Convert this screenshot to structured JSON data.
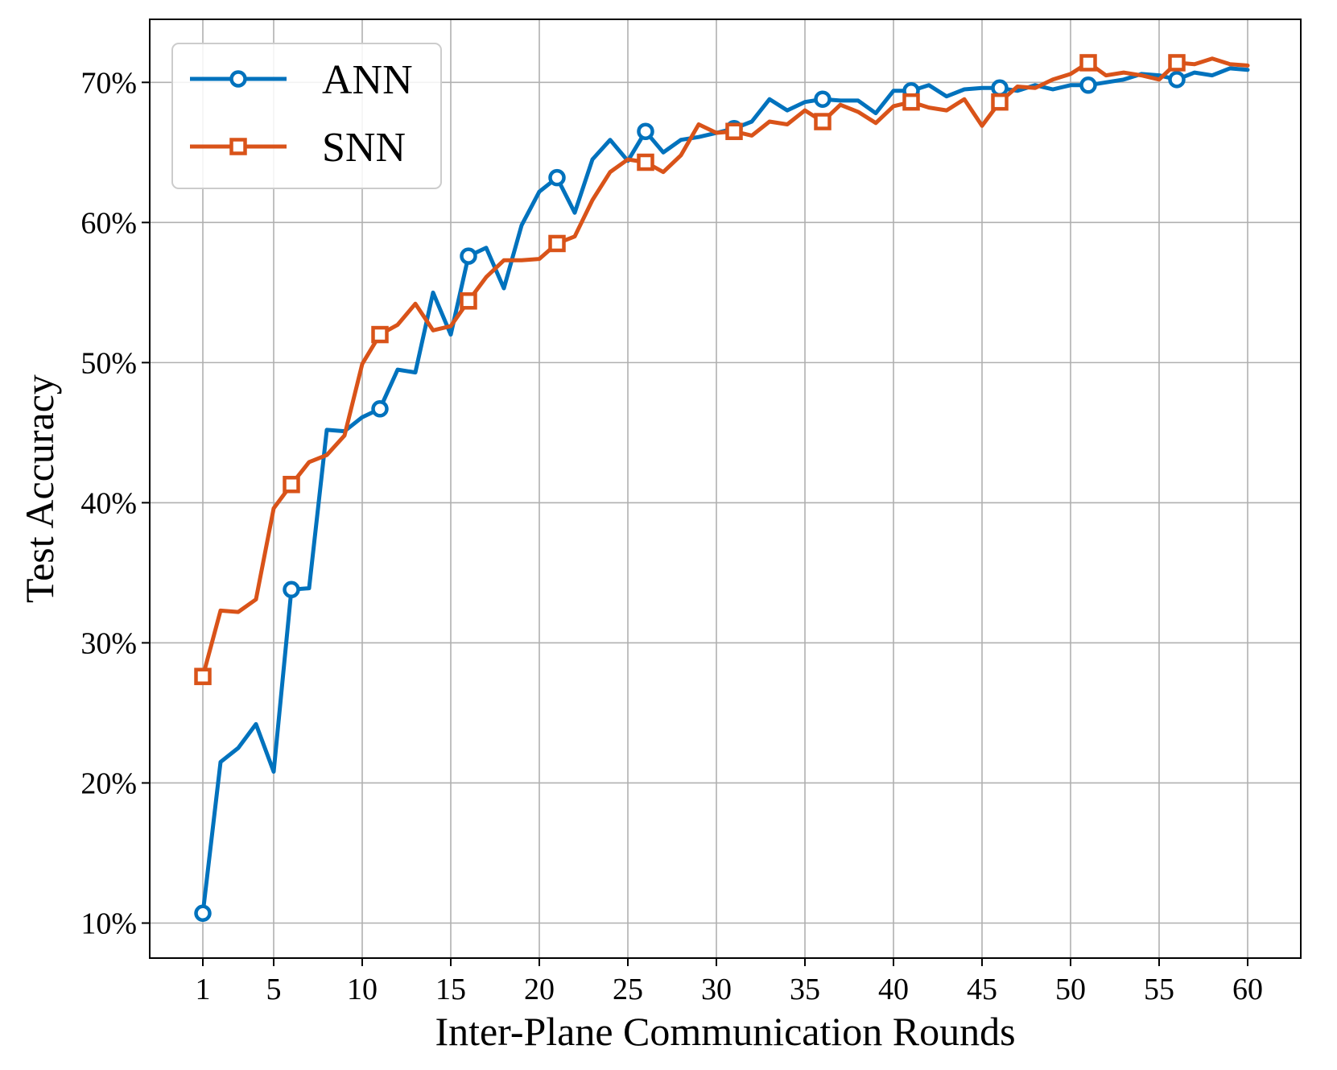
{
  "chart_data": {
    "type": "line",
    "xlabel": "Inter-Plane Communication Rounds",
    "ylabel": "Test Accuracy",
    "xlim": [
      -2,
      63
    ],
    "ylim": [
      7.5,
      74.5
    ],
    "x_ticks": [
      1,
      5,
      10,
      15,
      20,
      25,
      30,
      35,
      40,
      45,
      50,
      55,
      60
    ],
    "y_ticks": [
      10,
      20,
      30,
      40,
      50,
      60,
      70
    ],
    "y_tick_labels": [
      "10%",
      "20%",
      "30%",
      "40%",
      "50%",
      "60%",
      "70%"
    ],
    "grid": true,
    "legend_position": "top-left",
    "x": [
      1,
      2,
      3,
      4,
      5,
      6,
      7,
      8,
      9,
      10,
      11,
      12,
      13,
      14,
      15,
      16,
      17,
      18,
      19,
      20,
      21,
      22,
      23,
      24,
      25,
      26,
      27,
      28,
      29,
      30,
      31,
      32,
      33,
      34,
      35,
      36,
      37,
      38,
      39,
      40,
      41,
      42,
      43,
      44,
      45,
      46,
      47,
      48,
      49,
      50,
      51,
      52,
      53,
      54,
      55,
      56,
      57,
      58,
      59,
      60
    ],
    "marker_every": 5,
    "series": [
      {
        "name": "ANN",
        "color": "#0072bd",
        "marker": "circle",
        "values": [
          10.7,
          21.5,
          22.5,
          24.2,
          20.8,
          33.8,
          33.9,
          45.2,
          45.1,
          46.1,
          46.7,
          49.5,
          49.3,
          55.0,
          52.0,
          57.6,
          58.2,
          55.3,
          59.8,
          62.2,
          63.2,
          60.7,
          64.5,
          65.9,
          64.4,
          66.5,
          65.0,
          65.9,
          66.1,
          66.4,
          66.7,
          67.2,
          68.8,
          68.0,
          68.6,
          68.8,
          68.7,
          68.7,
          67.8,
          69.4,
          69.4,
          69.8,
          69.0,
          69.5,
          69.6,
          69.6,
          69.4,
          69.8,
          69.5,
          69.8,
          69.8,
          70.0,
          70.2,
          70.6,
          70.5,
          70.2,
          70.7,
          70.5,
          71.0,
          70.9
        ]
      },
      {
        "name": "SNN",
        "color": "#d95319",
        "marker": "square",
        "values": [
          27.6,
          32.3,
          32.2,
          33.1,
          39.6,
          41.3,
          42.9,
          43.4,
          44.8,
          49.9,
          52.0,
          52.7,
          54.2,
          52.3,
          52.6,
          54.4,
          56.1,
          57.3,
          57.3,
          57.4,
          58.5,
          59.0,
          61.6,
          63.6,
          64.5,
          64.3,
          63.6,
          64.8,
          67.0,
          66.4,
          66.5,
          66.2,
          67.2,
          67.0,
          68.0,
          67.2,
          68.4,
          67.9,
          67.1,
          68.3,
          68.6,
          68.2,
          68.0,
          68.8,
          66.9,
          68.6,
          69.7,
          69.6,
          70.2,
          70.6,
          71.4,
          70.5,
          70.7,
          70.5,
          70.2,
          71.4,
          71.3,
          71.7,
          71.3,
          71.2
        ]
      }
    ]
  }
}
